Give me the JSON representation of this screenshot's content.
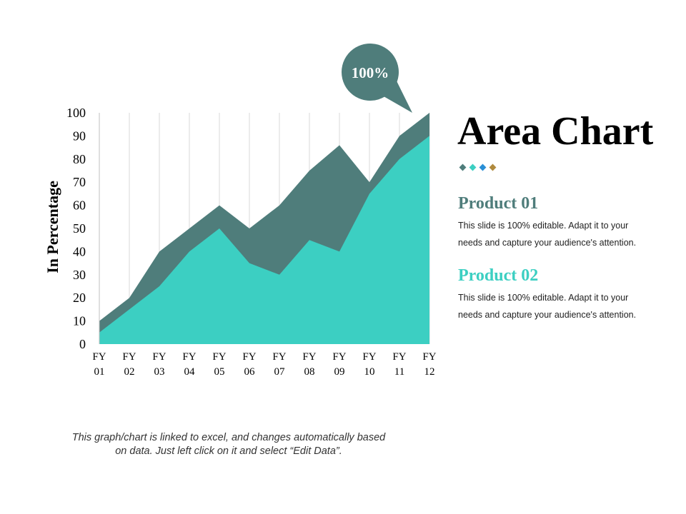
{
  "chart_data": {
    "type": "area",
    "categories": [
      "FY\n01",
      "FY\n02",
      "FY\n03",
      "FY\n04",
      "FY\n05",
      "FY\n06",
      "FY\n07",
      "FY\n08",
      "FY\n09",
      "FY\n10",
      "FY\n11",
      "FY\n12"
    ],
    "series": [
      {
        "values": [
          10,
          20,
          40,
          50,
          60,
          50,
          60,
          75,
          86,
          70,
          90,
          100
        ],
        "color": "#4f7d7b"
      },
      {
        "values": [
          5,
          15,
          25,
          40,
          50,
          35,
          30,
          45,
          40,
          65,
          80,
          90
        ],
        "color": "#3ccfc2"
      }
    ],
    "yticks": [
      "0",
      "10",
      "20",
      "30",
      "40",
      "50",
      "60",
      "70",
      "80",
      "90",
      "100"
    ],
    "ylabel": "In Percentage",
    "ylim": [
      0,
      100
    ],
    "grid": "vertical",
    "callout": "100%",
    "callout_color": "#4f7d7b"
  },
  "side": {
    "title": "Area Chart",
    "dot_colors": [
      "#4f7d7b",
      "#3ccfc2",
      "#2a8fd6",
      "#b08a3e"
    ],
    "products": [
      {
        "heading": "Product 01",
        "color": "#4f7d7b",
        "line1": "This slide is 100% editable. Adapt it to your",
        "line2": "needs and capture your audience's attention."
      },
      {
        "heading": "Product 02",
        "color": "#3ccfc2",
        "line1": "This slide is 100% editable. Adapt it to your",
        "line2": "needs and capture your audience's attention."
      }
    ]
  },
  "footnote": {
    "line1": "This graph/chart is linked to excel, and changes automatically based",
    "line2": "on data. Just left click on it and select “Edit Data”."
  }
}
